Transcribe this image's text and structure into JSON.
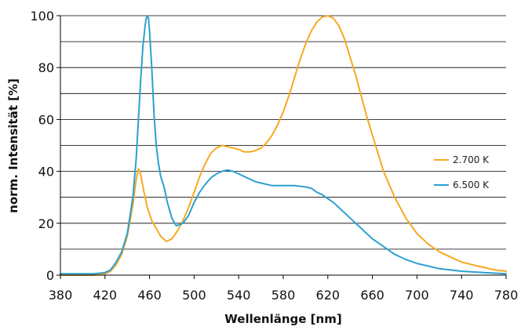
{
  "chart_data": {
    "type": "line",
    "xlabel": "Wellenlänge [nm]",
    "ylabel": "norm. Intensität [%]",
    "xlim": [
      380,
      780
    ],
    "ylim": [
      0,
      100
    ],
    "x_ticks": [
      "380",
      "420",
      "460",
      "500",
      "540",
      "580",
      "620",
      "660",
      "700",
      "740",
      "780"
    ],
    "y_ticks": [
      "0",
      "20",
      "40",
      "60",
      "80",
      "100"
    ],
    "grid": "horizontal, every 10",
    "legend_position": "right",
    "series": [
      {
        "name": "2.700 K",
        "color": "#F7A823",
        "points": [
          [
            380,
            0
          ],
          [
            410,
            0
          ],
          [
            420,
            0.5
          ],
          [
            425,
            1.5
          ],
          [
            430,
            4
          ],
          [
            435,
            8
          ],
          [
            440,
            15
          ],
          [
            445,
            27
          ],
          [
            448,
            37
          ],
          [
            450,
            41
          ],
          [
            452,
            39
          ],
          [
            455,
            32
          ],
          [
            458,
            26
          ],
          [
            462,
            21
          ],
          [
            466,
            18
          ],
          [
            470,
            15
          ],
          [
            475,
            13
          ],
          [
            480,
            14
          ],
          [
            485,
            17
          ],
          [
            490,
            21
          ],
          [
            495,
            26
          ],
          [
            500,
            32
          ],
          [
            505,
            38
          ],
          [
            510,
            43
          ],
          [
            515,
            47
          ],
          [
            520,
            49
          ],
          [
            525,
            50
          ],
          [
            530,
            49.5
          ],
          [
            535,
            49
          ],
          [
            540,
            48.5
          ],
          [
            545,
            47.5
          ],
          [
            550,
            47.5
          ],
          [
            555,
            48
          ],
          [
            560,
            49
          ],
          [
            565,
            51
          ],
          [
            570,
            54
          ],
          [
            575,
            58
          ],
          [
            580,
            63
          ],
          [
            585,
            69
          ],
          [
            590,
            76
          ],
          [
            595,
            83
          ],
          [
            600,
            89
          ],
          [
            605,
            94
          ],
          [
            610,
            97.5
          ],
          [
            615,
            99.5
          ],
          [
            620,
            100
          ],
          [
            625,
            99
          ],
          [
            630,
            96
          ],
          [
            635,
            91
          ],
          [
            640,
            84
          ],
          [
            645,
            77
          ],
          [
            650,
            69
          ],
          [
            655,
            61
          ],
          [
            660,
            54
          ],
          [
            665,
            47
          ],
          [
            670,
            40
          ],
          [
            675,
            35
          ],
          [
            680,
            30
          ],
          [
            690,
            22
          ],
          [
            700,
            16
          ],
          [
            710,
            12
          ],
          [
            720,
            9
          ],
          [
            730,
            7
          ],
          [
            740,
            5
          ],
          [
            750,
            4
          ],
          [
            760,
            3
          ],
          [
            770,
            2
          ],
          [
            780,
            1.5
          ]
        ]
      },
      {
        "name": "6.500 K",
        "color": "#2CA0D0",
        "points": [
          [
            380,
            0.5
          ],
          [
            410,
            0.5
          ],
          [
            420,
            1
          ],
          [
            425,
            2
          ],
          [
            430,
            5
          ],
          [
            435,
            9
          ],
          [
            440,
            16
          ],
          [
            445,
            30
          ],
          [
            448,
            45
          ],
          [
            450,
            60
          ],
          [
            452,
            75
          ],
          [
            454,
            88
          ],
          [
            456,
            96
          ],
          [
            457,
            99
          ],
          [
            458,
            100
          ],
          [
            459,
            99
          ],
          [
            460,
            94
          ],
          [
            462,
            80
          ],
          [
            464,
            62
          ],
          [
            466,
            50
          ],
          [
            468,
            43
          ],
          [
            470,
            38
          ],
          [
            473,
            34
          ],
          [
            476,
            28
          ],
          [
            480,
            22
          ],
          [
            484,
            19
          ],
          [
            487,
            19.5
          ],
          [
            490,
            20
          ],
          [
            495,
            23
          ],
          [
            500,
            28
          ],
          [
            505,
            32
          ],
          [
            510,
            35
          ],
          [
            515,
            37.5
          ],
          [
            520,
            39
          ],
          [
            525,
            40
          ],
          [
            530,
            40.5
          ],
          [
            535,
            40
          ],
          [
            540,
            39
          ],
          [
            545,
            38
          ],
          [
            550,
            37
          ],
          [
            555,
            36
          ],
          [
            560,
            35.5
          ],
          [
            565,
            35
          ],
          [
            570,
            34.5
          ],
          [
            575,
            34.5
          ],
          [
            580,
            34.5
          ],
          [
            590,
            34.5
          ],
          [
            600,
            34
          ],
          [
            605,
            33.5
          ],
          [
            610,
            32
          ],
          [
            615,
            31
          ],
          [
            620,
            29.5
          ],
          [
            625,
            28
          ],
          [
            630,
            26
          ],
          [
            640,
            22
          ],
          [
            650,
            18
          ],
          [
            660,
            14
          ],
          [
            670,
            11
          ],
          [
            680,
            8
          ],
          [
            690,
            6
          ],
          [
            700,
            4.5
          ],
          [
            710,
            3.5
          ],
          [
            720,
            2.5
          ],
          [
            730,
            2
          ],
          [
            740,
            1.5
          ],
          [
            760,
            1
          ],
          [
            780,
            0.5
          ]
        ]
      }
    ]
  }
}
